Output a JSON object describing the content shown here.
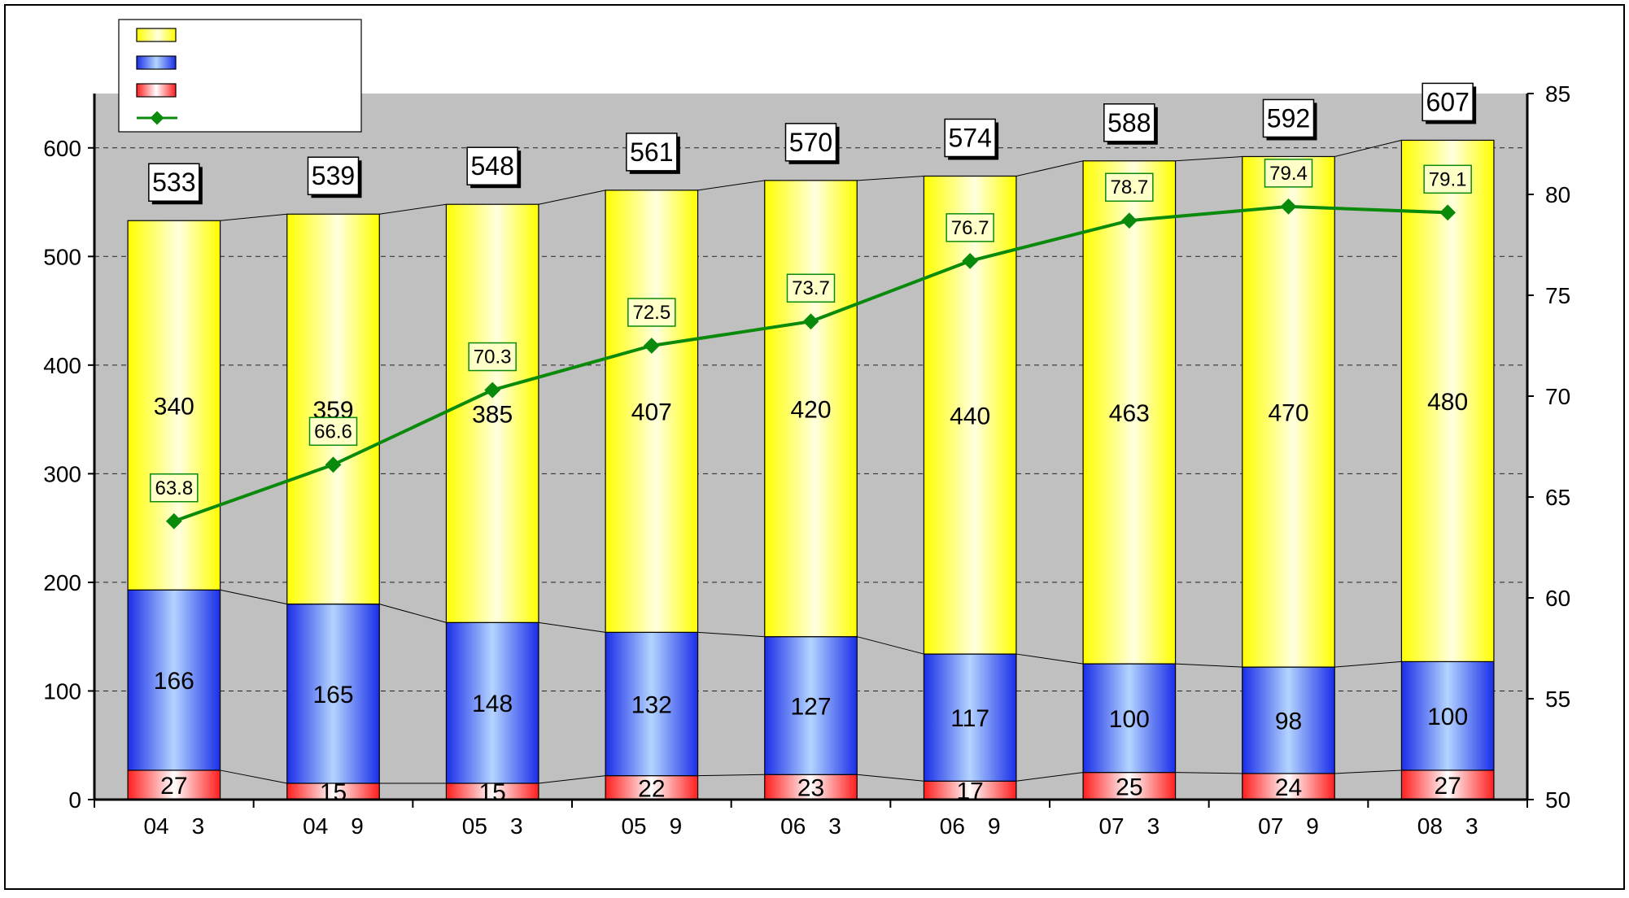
{
  "chart_data": {
    "type": "bar",
    "subtype": "stacked-bar-with-line",
    "title": "",
    "xlabel": "",
    "ylabel": "",
    "y2label": "",
    "categories": [
      "04　3",
      "04　9",
      "05　3",
      "05　9",
      "06　3",
      "06　9",
      "07　3",
      "07　9",
      "08　3"
    ],
    "series": [
      {
        "values": [
          27,
          15,
          15,
          22,
          23,
          17,
          25,
          24,
          27
        ],
        "color": "#ff2a2a",
        "axis": "left",
        "kind": "bar"
      },
      {
        "values": [
          166,
          165,
          148,
          132,
          127,
          117,
          100,
          98,
          100
        ],
        "color": "#2030e8",
        "axis": "left",
        "kind": "bar"
      },
      {
        "values": [
          340,
          359,
          385,
          407,
          420,
          440,
          463,
          470,
          480
        ],
        "color": "#ffff00",
        "axis": "left",
        "kind": "bar"
      },
      {
        "values": [
          63.8,
          66.6,
          70.3,
          72.5,
          73.7,
          76.7,
          78.7,
          79.4,
          79.1
        ],
        "color": "#0a8a0a",
        "axis": "right",
        "kind": "line"
      }
    ],
    "totals": [
      533,
      539,
      548,
      561,
      570,
      574,
      588,
      592,
      607
    ],
    "ylim": [
      0,
      650
    ],
    "yticks": [
      0,
      100,
      200,
      300,
      400,
      500,
      600
    ],
    "y2lim": [
      50,
      85
    ],
    "y2ticks": [
      50,
      55,
      60,
      65,
      70,
      75,
      80,
      85
    ],
    "grid": true,
    "legend_position": "top-left",
    "plot_background": "#c0c0c0"
  }
}
